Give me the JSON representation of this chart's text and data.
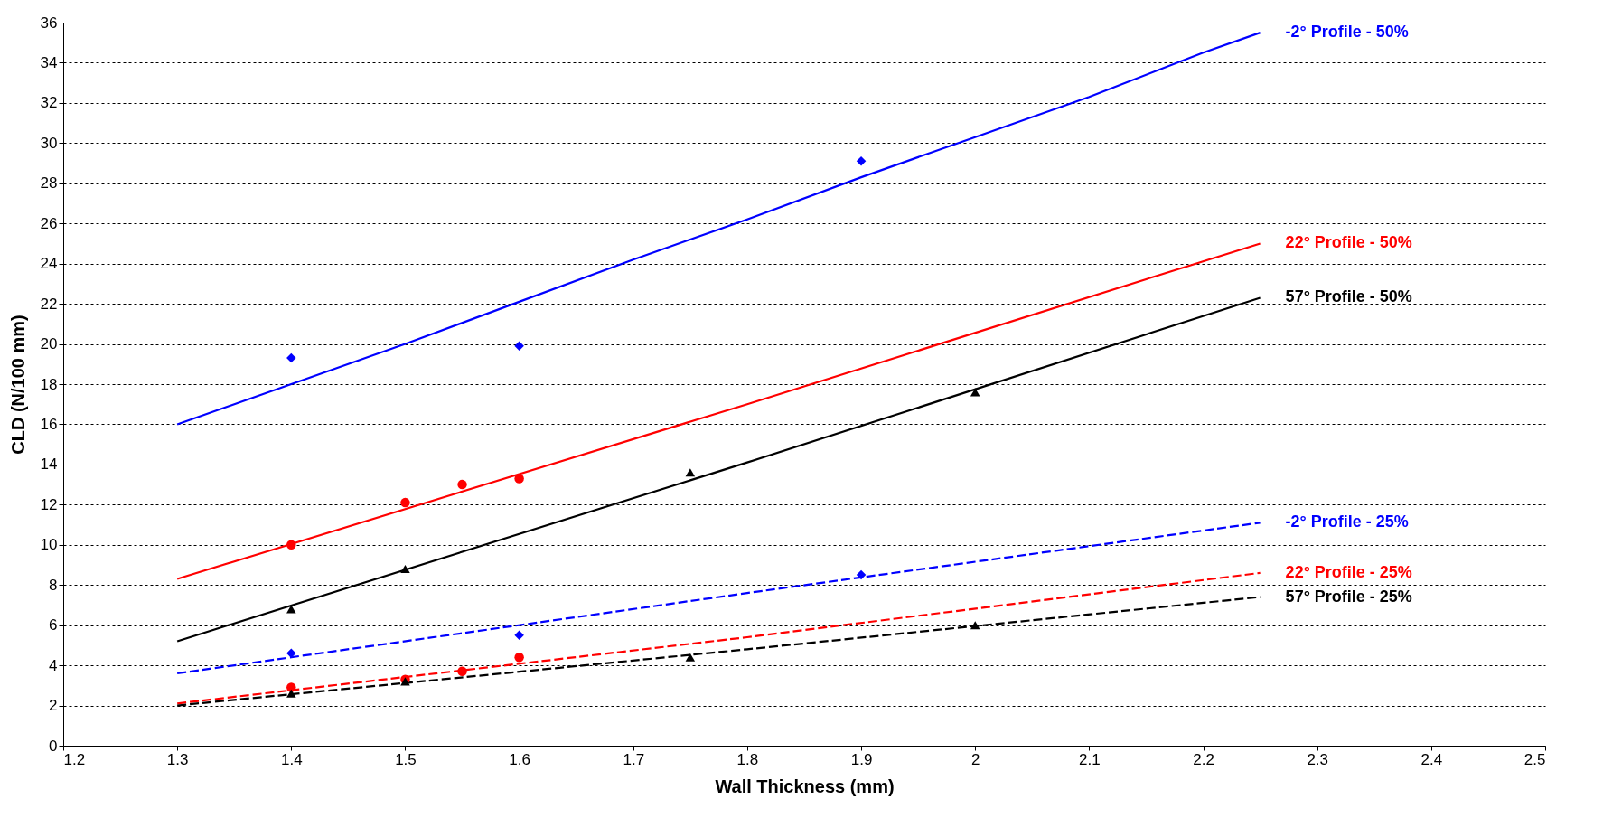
{
  "chart_data": {
    "type": "scatter",
    "xlabel": "Wall Thickness (mm)",
    "ylabel": "CLD (N/100 mm)",
    "xlim": [
      1.2,
      2.5
    ],
    "ylim": [
      0,
      36
    ],
    "xticks": [
      1.2,
      1.3,
      1.4,
      1.5,
      1.6,
      1.7,
      1.8,
      1.9,
      2,
      2.1,
      2.2,
      2.3,
      2.4,
      2.5
    ],
    "yticks": [
      0,
      2,
      4,
      6,
      8,
      10,
      12,
      14,
      16,
      18,
      20,
      22,
      24,
      26,
      28,
      30,
      32,
      34,
      36
    ],
    "grid": "y",
    "series": [
      {
        "type": "line",
        "name": "-2° Profile - 50%",
        "color": "#0000ff",
        "line_style": "solid",
        "marker": "none",
        "x": [
          1.3,
          1.4,
          1.5,
          1.6,
          1.7,
          1.8,
          1.9,
          2.0,
          2.1,
          2.2,
          2.25
        ],
        "values": [
          16.0,
          18.0,
          20.0,
          22.1,
          24.2,
          26.2,
          28.3,
          30.3,
          32.3,
          34.5,
          35.5
        ]
      },
      {
        "type": "line",
        "name": "22° Profile - 50%",
        "color": "#ff0000",
        "line_style": "solid",
        "marker": "none",
        "x": [
          1.3,
          1.8,
          2.25
        ],
        "values": [
          8.3,
          17.0,
          25.0
        ]
      },
      {
        "type": "line",
        "name": "57° Profile - 50%",
        "color": "#000000",
        "line_style": "solid",
        "marker": "none",
        "x": [
          1.3,
          1.8,
          2.25
        ],
        "values": [
          5.2,
          14.1,
          22.3
        ]
      },
      {
        "type": "line",
        "name": "-2° Profile - 25%",
        "color": "#0000ff",
        "line_style": "dashed",
        "marker": "none",
        "x": [
          1.3,
          1.8,
          2.25
        ],
        "values": [
          3.6,
          7.6,
          11.1
        ]
      },
      {
        "type": "line",
        "name": "22° Profile - 25%",
        "color": "#ff0000",
        "line_style": "dashed",
        "marker": "none",
        "x": [
          1.3,
          1.8,
          2.25
        ],
        "values": [
          2.1,
          5.4,
          8.6
        ]
      },
      {
        "type": "line",
        "name": "57° Profile - 25%",
        "color": "#000000",
        "line_style": "dashed",
        "marker": "none",
        "x": [
          1.3,
          1.8,
          2.25
        ],
        "values": [
          2.0,
          4.8,
          7.4
        ]
      },
      {
        "color": "#0000ff",
        "marker": "diamond",
        "x": [
          1.4,
          1.6,
          1.9
        ],
        "values": [
          19.3,
          19.9,
          29.1
        ]
      },
      {
        "color": "#ff0000",
        "marker": "circle",
        "x": [
          1.4,
          1.5,
          1.55,
          1.6
        ],
        "values": [
          10.0,
          12.1,
          13.0,
          13.3
        ]
      },
      {
        "color": "#000000",
        "marker": "triangle",
        "x": [
          1.4,
          1.5,
          1.75,
          2.0
        ],
        "values": [
          6.8,
          8.8,
          13.6,
          17.6
        ]
      },
      {
        "color": "#0000ff",
        "marker": "diamond",
        "x": [
          1.4,
          1.6,
          1.9
        ],
        "values": [
          4.6,
          5.5,
          8.5
        ]
      },
      {
        "color": "#ff0000",
        "marker": "circle",
        "x": [
          1.4,
          1.5,
          1.55,
          1.6
        ],
        "values": [
          2.9,
          3.3,
          3.7,
          4.4
        ]
      },
      {
        "color": "#000000",
        "marker": "triangle",
        "x": [
          1.4,
          1.5,
          1.75,
          2.0
        ],
        "values": [
          2.6,
          3.2,
          4.4,
          6.0
        ]
      }
    ]
  }
}
